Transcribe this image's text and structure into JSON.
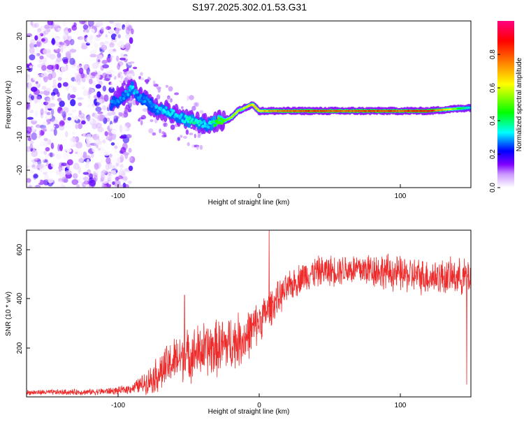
{
  "figure": {
    "title": "S197.2025.302.01.53.G31"
  },
  "chart_data": [
    {
      "type": "heatmap",
      "title": "S197.2025.302.01.53.G31",
      "xlabel": "Height of straight line (km)",
      "ylabel": "Frequency (Hz)",
      "xlim": [
        -165,
        150
      ],
      "ylim": [
        -25,
        25
      ],
      "xticks": [
        -100,
        0,
        100
      ],
      "xtick_labels": [
        "-100",
        "0",
        "100"
      ],
      "yticks": [
        -20,
        -10,
        0,
        10,
        20
      ],
      "ytick_labels": [
        "-20",
        "-10",
        "0",
        "10",
        "20"
      ],
      "colorbar": {
        "label": "Normalized spectral amplitude",
        "range": [
          0,
          1
        ],
        "ticks": [
          0.0,
          0.2,
          0.4,
          0.6,
          0.8
        ],
        "tick_labels": [
          "0.0",
          "0.2",
          "0.4",
          "0.6",
          "0.8"
        ],
        "colors": [
          "#ffffff",
          "#8000ff",
          "#0000ff",
          "#00ffff",
          "#00ff00",
          "#ffff00",
          "#ff8000",
          "#ff0000",
          "#ff0080"
        ]
      },
      "ridge": {
        "x": [
          -105,
          -95,
          -90,
          -85,
          -80,
          -75,
          -70,
          -65,
          -60,
          -55,
          -50,
          -45,
          -40,
          -35,
          -30,
          -25,
          -20,
          -15,
          -10,
          -5,
          0,
          5,
          10,
          20,
          40,
          60,
          80,
          100,
          120,
          150
        ],
        "frequency": [
          0,
          3,
          5,
          2,
          1,
          -1,
          -2,
          -2,
          -3,
          -4,
          -5,
          -5,
          -6,
          -6,
          -5,
          -5,
          -4,
          -2,
          -1,
          0,
          -2,
          -2,
          -2,
          -2,
          -2,
          -2,
          -2,
          -2,
          -2,
          -1
        ],
        "amplitude": [
          0.3,
          0.3,
          0.35,
          0.3,
          0.3,
          0.3,
          0.35,
          0.35,
          0.35,
          0.35,
          0.4,
          0.4,
          0.35,
          0.35,
          0.5,
          0.55,
          0.6,
          0.6,
          0.65,
          0.7,
          0.7,
          0.75,
          0.8,
          0.85,
          0.9,
          0.85,
          0.9,
          0.85,
          0.95,
          0.35
        ]
      },
      "noise_region": {
        "x_range": [
          -165,
          -90
        ],
        "frequency_range": [
          -25,
          25
        ],
        "amplitude_range": [
          0.0,
          0.2
        ]
      }
    },
    {
      "type": "line",
      "xlabel": "Height of straight line (km)",
      "ylabel": "SNR (10 * v/v)",
      "xlim": [
        -165,
        150
      ],
      "ylim": [
        0,
        680
      ],
      "xticks": [
        -100,
        0,
        100
      ],
      "xtick_labels": [
        "-100",
        "0",
        "100"
      ],
      "yticks": [
        200,
        400,
        600
      ],
      "ytick_labels": [
        "200",
        "400",
        "600"
      ],
      "color": "#ee2a2a",
      "envelope": {
        "x": [
          -165,
          -120,
          -100,
          -90,
          -80,
          -70,
          -60,
          -50,
          -40,
          -30,
          -20,
          -10,
          0,
          10,
          20,
          30,
          40,
          60,
          80,
          100,
          120,
          140,
          150
        ],
        "median": [
          18,
          20,
          25,
          35,
          60,
          100,
          150,
          170,
          190,
          200,
          220,
          240,
          310,
          380,
          440,
          490,
          510,
          520,
          520,
          500,
          490,
          490,
          490
        ],
        "spread": [
          10,
          12,
          15,
          20,
          45,
          80,
          90,
          100,
          110,
          110,
          110,
          100,
          80,
          70,
          60,
          60,
          60,
          60,
          70,
          70,
          70,
          70,
          70
        ]
      },
      "spikes": [
        {
          "x": 7,
          "y": 680
        },
        {
          "x": -53,
          "y": 415
        },
        {
          "x": 147,
          "y": 50
        }
      ]
    }
  ]
}
